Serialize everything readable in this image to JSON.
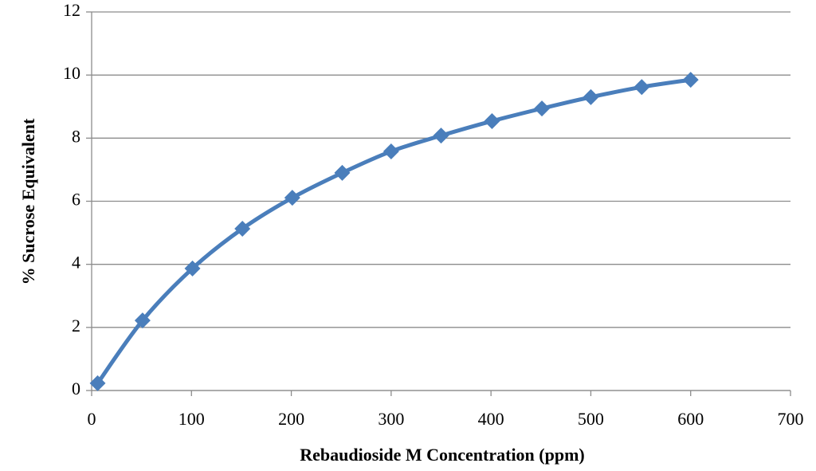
{
  "chart_data": {
    "type": "scatter",
    "x_label": "Rebaudioside M Concentration  (ppm)",
    "y_label": "% Sucrose Equivalent",
    "series": [
      {
        "color": "#4a7ebb",
        "x": [
          6,
          51,
          101,
          151,
          201,
          251,
          300,
          350,
          401,
          451,
          500,
          551,
          600
        ],
        "values": [
          0.23,
          2.22,
          3.87,
          5.13,
          6.11,
          6.9,
          7.58,
          8.08,
          8.54,
          8.94,
          9.3,
          9.62,
          9.85
        ]
      }
    ],
    "xlim": [
      0,
      700
    ],
    "xticks": [
      0,
      100,
      200,
      300,
      400,
      500,
      600,
      700
    ],
    "ylim": [
      0,
      12
    ],
    "yticks": [
      0,
      2,
      4,
      6,
      8,
      10,
      12
    ],
    "grid": true,
    "smooth": true
  }
}
